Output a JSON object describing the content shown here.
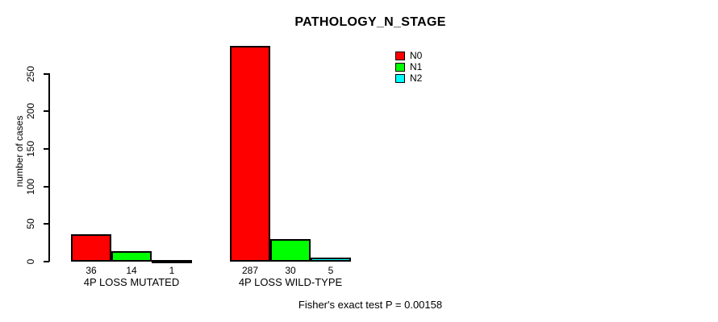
{
  "chart_data": {
    "type": "bar",
    "title": "PATHOLOGY_N_STAGE",
    "ylabel": "number of cases",
    "xlabel": "",
    "ylim": [
      0,
      250
    ],
    "yticks": [
      0,
      50,
      100,
      150,
      200,
      250
    ],
    "grid": false,
    "categories": [
      "4P LOSS MUTATED",
      "4P LOSS WILD-TYPE"
    ],
    "series": [
      {
        "name": "N0",
        "color": "#ff0000",
        "values": [
          36,
          287
        ]
      },
      {
        "name": "N1",
        "color": "#00ff00",
        "values": [
          14,
          30
        ]
      },
      {
        "name": "N2",
        "color": "#00ffff",
        "values": [
          1,
          5
        ]
      }
    ],
    "legend_position": "top-right-inside",
    "annotation": "Fisher's exact test P = 0.00158"
  }
}
